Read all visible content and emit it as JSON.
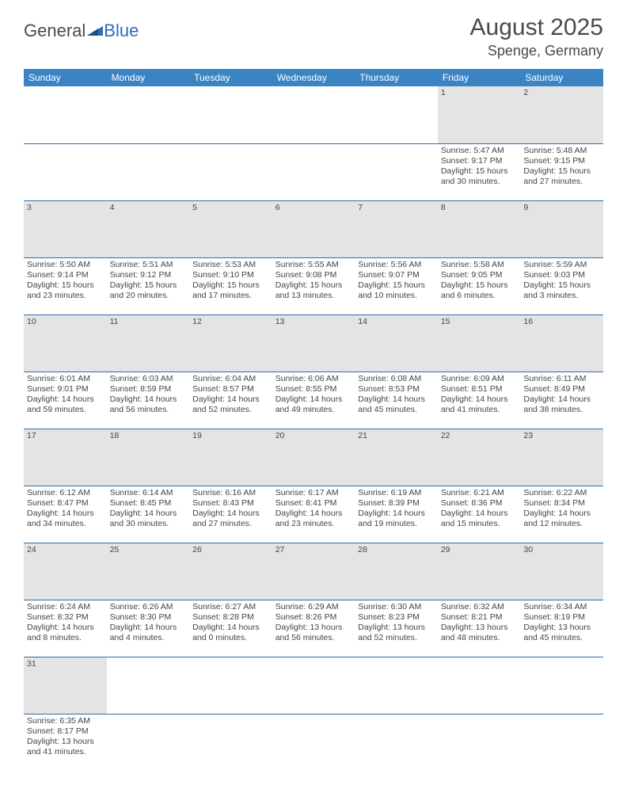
{
  "logo": {
    "dark": "General",
    "blue": "Blue"
  },
  "title": {
    "month": "August 2025",
    "location": "Spenge, Germany"
  },
  "colors": {
    "header_bg": "#3b84c4",
    "header_text": "#ffffff",
    "daynum_bg": "#e4e4e4",
    "row_border": "#2f6fa8",
    "text": "#444444",
    "logo_blue": "#2a6eb6",
    "logo_dark": "#4a4a4a"
  },
  "weekdays": [
    "Sunday",
    "Monday",
    "Tuesday",
    "Wednesday",
    "Thursday",
    "Friday",
    "Saturday"
  ],
  "weeks": [
    {
      "nums": [
        "",
        "",
        "",
        "",
        "",
        "1",
        "2"
      ],
      "cells": [
        null,
        null,
        null,
        null,
        null,
        {
          "sr": "5:47 AM",
          "ss": "9:17 PM",
          "dl": "15 hours and 30 minutes."
        },
        {
          "sr": "5:48 AM",
          "ss": "9:15 PM",
          "dl": "15 hours and 27 minutes."
        }
      ]
    },
    {
      "nums": [
        "3",
        "4",
        "5",
        "6",
        "7",
        "8",
        "9"
      ],
      "cells": [
        {
          "sr": "5:50 AM",
          "ss": "9:14 PM",
          "dl": "15 hours and 23 minutes."
        },
        {
          "sr": "5:51 AM",
          "ss": "9:12 PM",
          "dl": "15 hours and 20 minutes."
        },
        {
          "sr": "5:53 AM",
          "ss": "9:10 PM",
          "dl": "15 hours and 17 minutes."
        },
        {
          "sr": "5:55 AM",
          "ss": "9:08 PM",
          "dl": "15 hours and 13 minutes."
        },
        {
          "sr": "5:56 AM",
          "ss": "9:07 PM",
          "dl": "15 hours and 10 minutes."
        },
        {
          "sr": "5:58 AM",
          "ss": "9:05 PM",
          "dl": "15 hours and 6 minutes."
        },
        {
          "sr": "5:59 AM",
          "ss": "9:03 PM",
          "dl": "15 hours and 3 minutes."
        }
      ]
    },
    {
      "nums": [
        "10",
        "11",
        "12",
        "13",
        "14",
        "15",
        "16"
      ],
      "cells": [
        {
          "sr": "6:01 AM",
          "ss": "9:01 PM",
          "dl": "14 hours and 59 minutes."
        },
        {
          "sr": "6:03 AM",
          "ss": "8:59 PM",
          "dl": "14 hours and 56 minutes."
        },
        {
          "sr": "6:04 AM",
          "ss": "8:57 PM",
          "dl": "14 hours and 52 minutes."
        },
        {
          "sr": "6:06 AM",
          "ss": "8:55 PM",
          "dl": "14 hours and 49 minutes."
        },
        {
          "sr": "6:08 AM",
          "ss": "8:53 PM",
          "dl": "14 hours and 45 minutes."
        },
        {
          "sr": "6:09 AM",
          "ss": "8:51 PM",
          "dl": "14 hours and 41 minutes."
        },
        {
          "sr": "6:11 AM",
          "ss": "8:49 PM",
          "dl": "14 hours and 38 minutes."
        }
      ]
    },
    {
      "nums": [
        "17",
        "18",
        "19",
        "20",
        "21",
        "22",
        "23"
      ],
      "cells": [
        {
          "sr": "6:12 AM",
          "ss": "8:47 PM",
          "dl": "14 hours and 34 minutes."
        },
        {
          "sr": "6:14 AM",
          "ss": "8:45 PM",
          "dl": "14 hours and 30 minutes."
        },
        {
          "sr": "6:16 AM",
          "ss": "8:43 PM",
          "dl": "14 hours and 27 minutes."
        },
        {
          "sr": "6:17 AM",
          "ss": "8:41 PM",
          "dl": "14 hours and 23 minutes."
        },
        {
          "sr": "6:19 AM",
          "ss": "8:39 PM",
          "dl": "14 hours and 19 minutes."
        },
        {
          "sr": "6:21 AM",
          "ss": "8:36 PM",
          "dl": "14 hours and 15 minutes."
        },
        {
          "sr": "6:22 AM",
          "ss": "8:34 PM",
          "dl": "14 hours and 12 minutes."
        }
      ]
    },
    {
      "nums": [
        "24",
        "25",
        "26",
        "27",
        "28",
        "29",
        "30"
      ],
      "cells": [
        {
          "sr": "6:24 AM",
          "ss": "8:32 PM",
          "dl": "14 hours and 8 minutes."
        },
        {
          "sr": "6:26 AM",
          "ss": "8:30 PM",
          "dl": "14 hours and 4 minutes."
        },
        {
          "sr": "6:27 AM",
          "ss": "8:28 PM",
          "dl": "14 hours and 0 minutes."
        },
        {
          "sr": "6:29 AM",
          "ss": "8:26 PM",
          "dl": "13 hours and 56 minutes."
        },
        {
          "sr": "6:30 AM",
          "ss": "8:23 PM",
          "dl": "13 hours and 52 minutes."
        },
        {
          "sr": "6:32 AM",
          "ss": "8:21 PM",
          "dl": "13 hours and 48 minutes."
        },
        {
          "sr": "6:34 AM",
          "ss": "8:19 PM",
          "dl": "13 hours and 45 minutes."
        }
      ]
    },
    {
      "nums": [
        "31",
        "",
        "",
        "",
        "",
        "",
        ""
      ],
      "cells": [
        {
          "sr": "6:35 AM",
          "ss": "8:17 PM",
          "dl": "13 hours and 41 minutes."
        },
        null,
        null,
        null,
        null,
        null,
        null
      ]
    }
  ],
  "labels": {
    "sunrise": "Sunrise: ",
    "sunset": "Sunset: ",
    "daylight": "Daylight: "
  }
}
